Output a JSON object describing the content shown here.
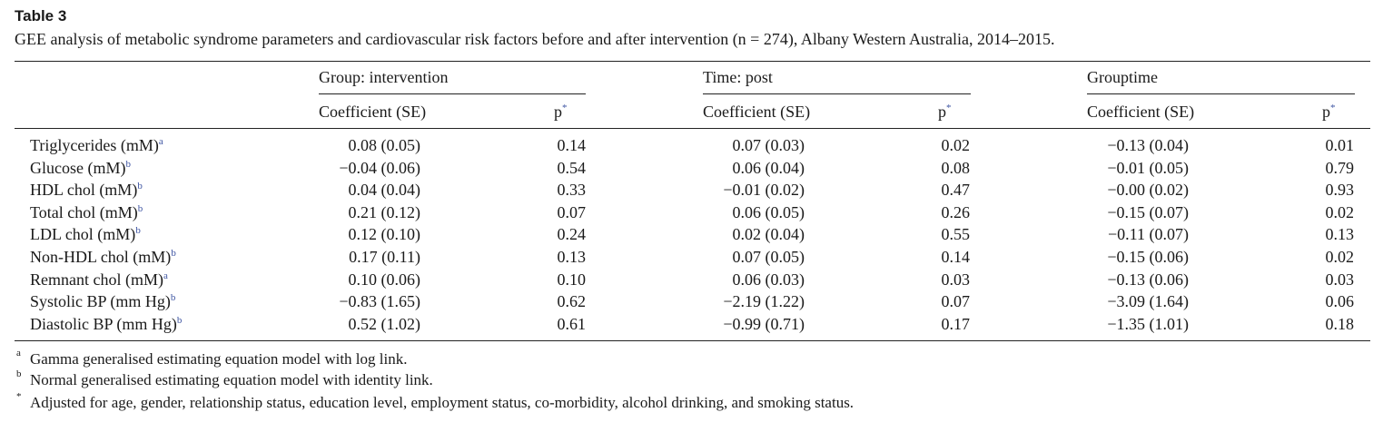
{
  "table": {
    "label": "Table 3",
    "caption": "GEE analysis of metabolic syndrome parameters and cardiovascular risk factors before and after intervention (n = 274), Albany Western Australia, 2014–2015.",
    "groups": [
      {
        "title": "Group: intervention",
        "coef_header": "Coefficient (SE)",
        "p_header": "p",
        "p_mark": "*"
      },
      {
        "title": "Time: post",
        "coef_header": "Coefficient (SE)",
        "p_header": "p",
        "p_mark": "*"
      },
      {
        "title": "Grouptime",
        "coef_header": "Coefficient (SE)",
        "p_header": "p",
        "p_mark": "*"
      }
    ],
    "rows": [
      {
        "label": "Triglycerides (mM)",
        "mark": "a",
        "cells": [
          [
            "0.08 (0.05)",
            "0.14"
          ],
          [
            "0.07 (0.03)",
            "0.02"
          ],
          [
            "−0.13 (0.04)",
            "0.01"
          ]
        ]
      },
      {
        "label": "Glucose (mM)",
        "mark": "b",
        "cells": [
          [
            "−0.04 (0.06)",
            "0.54"
          ],
          [
            "0.06 (0.04)",
            "0.08"
          ],
          [
            "−0.01 (0.05)",
            "0.79"
          ]
        ]
      },
      {
        "label": "HDL chol (mM)",
        "mark": "b",
        "cells": [
          [
            "0.04 (0.04)",
            "0.33"
          ],
          [
            "−0.01 (0.02)",
            "0.47"
          ],
          [
            "−0.00 (0.02)",
            "0.93"
          ]
        ]
      },
      {
        "label": "Total chol (mM)",
        "mark": "b",
        "cells": [
          [
            "0.21 (0.12)",
            "0.07"
          ],
          [
            "0.06 (0.05)",
            "0.26"
          ],
          [
            "−0.15 (0.07)",
            "0.02"
          ]
        ]
      },
      {
        "label": "LDL chol (mM)",
        "mark": "b",
        "cells": [
          [
            "0.12 (0.10)",
            "0.24"
          ],
          [
            "0.02 (0.04)",
            "0.55"
          ],
          [
            "−0.11 (0.07)",
            "0.13"
          ]
        ]
      },
      {
        "label": "Non-HDL chol (mM)",
        "mark": "b",
        "cells": [
          [
            "0.17 (0.11)",
            "0.13"
          ],
          [
            "0.07 (0.05)",
            "0.14"
          ],
          [
            "−0.15 (0.06)",
            "0.02"
          ]
        ]
      },
      {
        "label": "Remnant chol (mM)",
        "mark": "a",
        "cells": [
          [
            "0.10 (0.06)",
            "0.10"
          ],
          [
            "0.06 (0.03)",
            "0.03"
          ],
          [
            "−0.13 (0.06)",
            "0.03"
          ]
        ]
      },
      {
        "label": "Systolic BP (mm Hg)",
        "mark": "b",
        "cells": [
          [
            "−0.83 (1.65)",
            "0.62"
          ],
          [
            "−2.19 (1.22)",
            "0.07"
          ],
          [
            "−3.09 (1.64)",
            "0.06"
          ]
        ]
      },
      {
        "label": "Diastolic BP (mm Hg)",
        "mark": "b",
        "cells": [
          [
            "0.52 (1.02)",
            "0.61"
          ],
          [
            "−0.99 (0.71)",
            "0.17"
          ],
          [
            "−1.35 (1.01)",
            "0.18"
          ]
        ]
      }
    ],
    "footnotes": [
      {
        "mark": "a",
        "text": "Gamma generalised estimating equation model with log link."
      },
      {
        "mark": "b",
        "text": "Normal generalised estimating equation model with identity link."
      },
      {
        "mark": "*",
        "text": "Adjusted for age, gender, relationship status, education level, employment status, co-morbidity, alcohol drinking, and smoking status."
      }
    ]
  }
}
